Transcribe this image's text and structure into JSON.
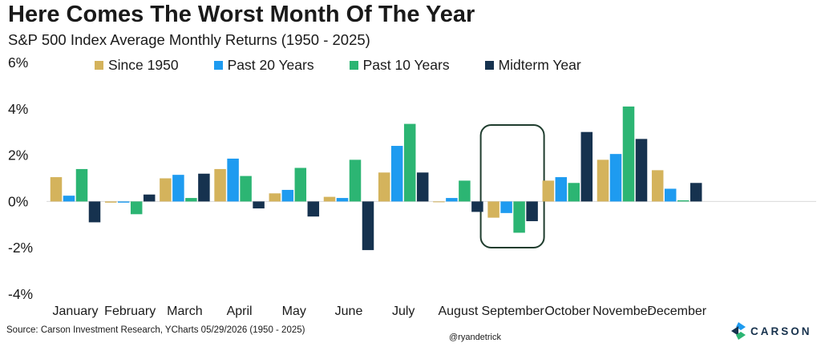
{
  "chart_data": {
    "type": "bar",
    "title": "Here Comes The Worst Month Of The Year",
    "subtitle": "S&P 500 Index Average Monthly Returns (1950 - 2025)",
    "categories": [
      "January",
      "February",
      "March",
      "April",
      "May",
      "June",
      "July",
      "August",
      "September",
      "October",
      "November",
      "December"
    ],
    "series": [
      {
        "name": "Since 1950",
        "color": "#d4b35c",
        "values": [
          1.05,
          -0.05,
          1.0,
          1.4,
          0.35,
          0.2,
          1.25,
          0.0,
          -0.7,
          0.9,
          1.8,
          1.35
        ]
      },
      {
        "name": "Past 20 Years",
        "color": "#1e9bf0",
        "values": [
          0.25,
          -0.05,
          1.15,
          1.85,
          0.5,
          0.15,
          2.4,
          0.15,
          -0.5,
          1.05,
          2.05,
          0.55
        ]
      },
      {
        "name": "Past 10 Years",
        "color": "#2cb573",
        "values": [
          1.4,
          -0.55,
          0.15,
          1.1,
          1.45,
          1.8,
          3.35,
          0.9,
          -1.35,
          0.8,
          4.1,
          0.05
        ]
      },
      {
        "name": "Midterm Year",
        "color": "#16324f",
        "values": [
          -0.9,
          0.3,
          1.2,
          -0.3,
          -0.65,
          -2.1,
          1.25,
          -0.45,
          -0.85,
          3.0,
          2.7,
          0.8
        ]
      }
    ],
    "yticks": [
      "6%",
      "4%",
      "2%",
      "0%",
      "-2%",
      "-4%"
    ],
    "ylim": [
      -4,
      6
    ],
    "xlabel": "",
    "ylabel": "",
    "legend_position": "top",
    "highlight_category": "September",
    "grid": false
  },
  "source": "Source: Carson Investment Research, YCharts 05/29/2026 (1950 - 2025)",
  "handle": "@ryandetrick",
  "logo": {
    "text": "CARSON",
    "color": "#17324d"
  }
}
